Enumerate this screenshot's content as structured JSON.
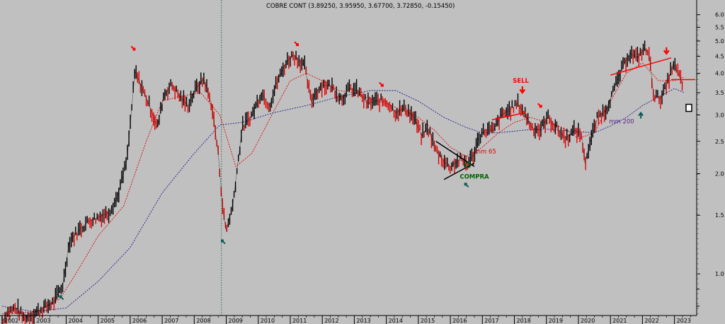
{
  "chart_data": {
    "type": "line",
    "title": "COBRE CONT (3.89250, 3.95950, 3.67700, 3.72850, -0.15450)",
    "y_scale": "log",
    "ylim": [
      0.75,
      6.2
    ],
    "xlim": [
      2002.0,
      2023.65
    ],
    "y_ticks": [
      6.0,
      5.5,
      5.0,
      4.5,
      4.0,
      3.5,
      3.0,
      2.5,
      2.0,
      1.5,
      1.0
    ],
    "y_minor_ticks": [
      0.9,
      0.8
    ],
    "x_ticks": [
      2002,
      2003,
      2004,
      2005,
      2006,
      2007,
      2008,
      2009,
      2010,
      2011,
      2012,
      2013,
      2014,
      2015,
      2016,
      2017,
      2018,
      2019,
      2020,
      2021,
      2022,
      2023
    ],
    "colors": {
      "background": "#c0c0c0",
      "price": "#000000",
      "mm65": "#e00000",
      "mm200": "#1a1a8c",
      "buy": "#006400",
      "sell": "#ff0000",
      "arrow_teal": "#0a5a5a"
    },
    "series": [
      {
        "name": "price",
        "x": [
          2002.0,
          2002.2,
          2002.45,
          2002.7,
          2003.0,
          2003.3,
          2003.6,
          2003.9,
          2004.1,
          2004.25,
          2004.45,
          2004.7,
          2005.0,
          2005.3,
          2005.6,
          2005.9,
          2006.15,
          2006.3,
          2006.6,
          2006.85,
          2007.05,
          2007.3,
          2007.55,
          2007.8,
          2008.05,
          2008.3,
          2008.55,
          2008.75,
          2008.9,
          2009.0,
          2009.2,
          2009.5,
          2009.8,
          2010.1,
          2010.35,
          2010.6,
          2010.9,
          2011.1,
          2011.25,
          2011.45,
          2011.65,
          2011.8,
          2012.0,
          2012.3,
          2012.6,
          2012.85,
          2013.1,
          2013.4,
          2013.7,
          2014.0,
          2014.3,
          2014.6,
          2014.9,
          2015.1,
          2015.3,
          2015.55,
          2015.85,
          2016.0,
          2016.3,
          2016.55,
          2016.75,
          2016.9,
          2017.1,
          2017.35,
          2017.6,
          2017.85,
          2018.1,
          2018.3,
          2018.55,
          2018.8,
          2019.05,
          2019.3,
          2019.6,
          2019.9,
          2020.1,
          2020.2,
          2020.4,
          2020.6,
          2020.85,
          2021.1,
          2021.35,
          2021.6,
          2021.85,
          2022.05,
          2022.2,
          2022.35,
          2022.55,
          2022.75,
          2022.95,
          2023.1,
          2023.25
        ],
        "values": [
          0.72,
          0.77,
          0.79,
          0.73,
          0.76,
          0.79,
          0.82,
          0.93,
          1.25,
          1.3,
          1.37,
          1.44,
          1.48,
          1.52,
          1.7,
          2.2,
          4.05,
          3.75,
          3.2,
          2.75,
          3.45,
          3.7,
          3.4,
          3.2,
          3.6,
          3.85,
          3.2,
          2.3,
          1.55,
          1.35,
          1.6,
          2.75,
          3.0,
          3.5,
          3.2,
          3.8,
          4.35,
          4.55,
          4.4,
          4.2,
          3.3,
          3.5,
          3.7,
          3.65,
          3.35,
          3.6,
          3.55,
          3.25,
          3.3,
          3.3,
          3.05,
          3.15,
          2.9,
          2.6,
          2.75,
          2.35,
          2.15,
          2.1,
          2.2,
          2.15,
          2.3,
          2.6,
          2.7,
          2.7,
          3.0,
          3.1,
          3.25,
          3.05,
          2.75,
          2.7,
          2.95,
          2.75,
          2.55,
          2.7,
          2.6,
          2.15,
          2.55,
          2.95,
          3.1,
          3.55,
          4.1,
          4.6,
          4.45,
          4.75,
          4.6,
          3.45,
          3.35,
          3.65,
          4.25,
          4.05,
          3.73
        ]
      },
      {
        "name": "mm 65",
        "x": [
          2002.0,
          2003.0,
          2003.8,
          2004.3,
          2005.0,
          2005.8,
          2006.5,
          2007.0,
          2007.5,
          2008.2,
          2008.8,
          2009.3,
          2009.8,
          2010.5,
          2011.0,
          2011.5,
          2012.0,
          2012.5,
          2013.0,
          2013.5,
          2014.0,
          2014.5,
          2015.0,
          2015.5,
          2016.0,
          2016.5,
          2017.0,
          2017.5,
          2018.0,
          2018.5,
          2019.0,
          2019.5,
          2020.0,
          2020.5,
          2021.0,
          2021.5,
          2022.0,
          2022.5,
          2023.0,
          2023.3
        ],
        "values": [
          0.76,
          0.77,
          0.84,
          1.0,
          1.3,
          1.6,
          2.5,
          3.3,
          3.4,
          3.5,
          3.0,
          2.1,
          2.3,
          3.1,
          3.8,
          4.0,
          3.8,
          3.55,
          3.5,
          3.35,
          3.25,
          3.1,
          2.95,
          2.7,
          2.4,
          2.25,
          2.4,
          2.65,
          2.85,
          2.95,
          2.85,
          2.75,
          2.55,
          2.65,
          3.3,
          4.0,
          4.3,
          3.8,
          3.8,
          3.9
        ]
      },
      {
        "name": "mm 200",
        "x": [
          2002.0,
          2003.0,
          2004.0,
          2005.0,
          2006.0,
          2007.0,
          2008.0,
          2008.8,
          2009.5,
          2010.5,
          2011.5,
          2012.5,
          2013.5,
          2014.3,
          2015.0,
          2015.8,
          2016.5,
          2017.0,
          2017.5,
          2018.3,
          2019.0,
          2019.8,
          2020.5,
          2021.0,
          2021.5,
          2022.0,
          2022.5,
          2023.0,
          2023.3
        ],
        "values": [
          0.8,
          0.77,
          0.79,
          0.95,
          1.2,
          1.75,
          2.3,
          2.8,
          2.85,
          3.05,
          3.2,
          3.4,
          3.55,
          3.55,
          3.3,
          2.95,
          2.75,
          2.65,
          2.65,
          2.7,
          2.72,
          2.68,
          2.65,
          2.78,
          2.95,
          3.2,
          3.4,
          3.6,
          3.5
        ]
      }
    ],
    "lines": [
      {
        "name": "trendline",
        "color": "#000000",
        "x": [
          2015.55,
          2016.75
        ],
        "values": [
          2.5,
          2.1
        ]
      },
      {
        "name": "trendline",
        "color": "#000000",
        "x": [
          2015.8,
          2016.75
        ],
        "values": [
          1.92,
          2.15
        ]
      },
      {
        "name": "resistance",
        "color": "#ff0000",
        "x": [
          2017.3,
          2018.35
        ],
        "values": [
          2.9,
          3.05
        ]
      },
      {
        "name": "resistance",
        "color": "#ff0000",
        "x": [
          2021.0,
          2022.9
        ],
        "values": [
          3.95,
          4.45
        ]
      },
      {
        "name": "resistance",
        "color": "#ff0000",
        "x": [
          2022.9,
          2023.65
        ],
        "values": [
          3.83,
          3.83
        ]
      }
    ],
    "markers": [
      {
        "type": "arrow-down-right",
        "color": "#ff0000",
        "x": 2006.1,
        "y": 4.75
      },
      {
        "type": "arrow-down-right",
        "color": "#ff0000",
        "x": 2011.2,
        "y": 4.9
      },
      {
        "type": "arrow-down-right",
        "color": "#ff0000",
        "x": 2013.85,
        "y": 3.7
      },
      {
        "type": "arrow-down-right",
        "color": "#ff0000",
        "x": 2018.8,
        "y": 3.2
      },
      {
        "type": "arrow-down",
        "color": "#ff0000",
        "x": 2018.25,
        "y": 3.55
      },
      {
        "type": "arrow-down",
        "color": "#ff0000",
        "x": 2022.75,
        "y": 4.65
      },
      {
        "type": "arrow-up-left",
        "color": "#0a5a5a",
        "x": 2008.9,
        "y": 1.25
      },
      {
        "type": "arrow-up-left",
        "color": "#0a5a5a",
        "x": 2003.85,
        "y": 0.85
      },
      {
        "type": "arrow-up-left",
        "color": "#0a5a5a",
        "x": 2016.5,
        "y": 1.85
      },
      {
        "type": "arrow-up",
        "color": "#0a5a5a",
        "x": 2021.95,
        "y": 3.0
      },
      {
        "type": "circle",
        "color": "#006400",
        "x": 2016.55,
        "y": 2.12
      },
      {
        "type": "box",
        "color": "#000000",
        "x": 2023.45,
        "y": 3.15
      }
    ],
    "annotations": [
      {
        "text": "SELL",
        "color": "#ff0000",
        "x": 2018.2,
        "y": 3.75
      },
      {
        "text": "COMPRA",
        "color": "#006400",
        "x": 2016.75,
        "y": 1.93
      },
      {
        "text": "mm 65",
        "color": "#e00000",
        "x": 2017.1,
        "y": 2.3
      },
      {
        "text": "mm 200",
        "color": "#5a2a8a",
        "x": 2021.35,
        "y": 2.83
      }
    ],
    "vertical_line": {
      "x": 2008.85,
      "style": "dotted",
      "color": "#2a6a4a"
    }
  }
}
